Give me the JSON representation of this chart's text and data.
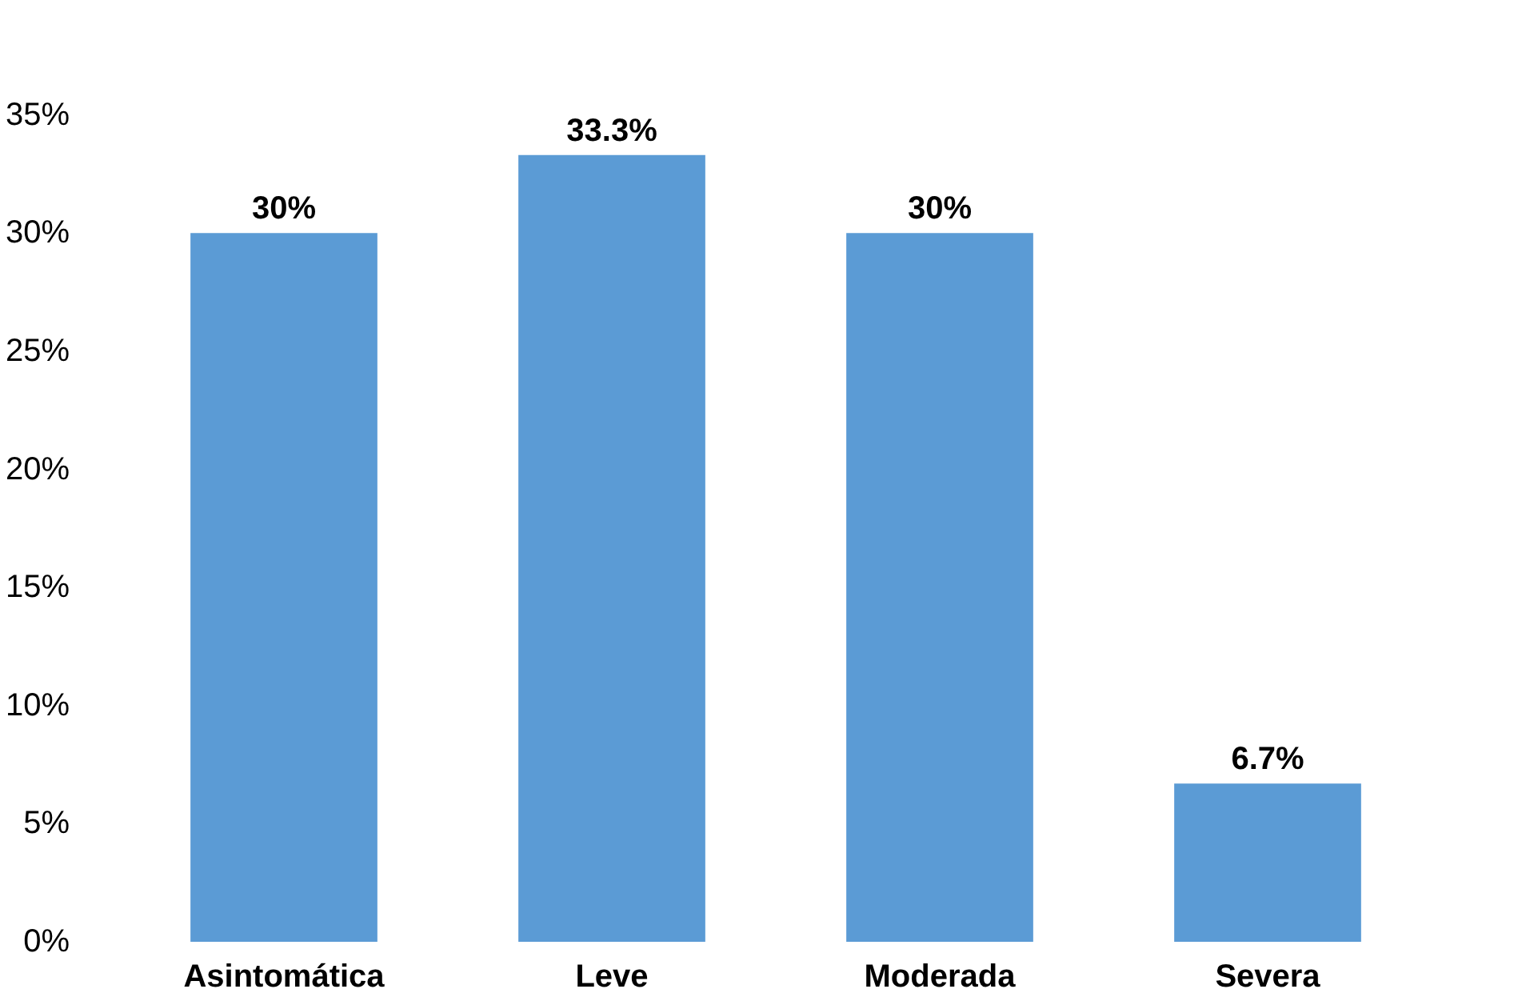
{
  "chart_data": {
    "type": "bar",
    "categories": [
      "Asintomática",
      "Leve",
      "Moderada",
      "Severa"
    ],
    "values": [
      30,
      33.3,
      30,
      6.7
    ],
    "color": "#5b9bd5",
    "value_labels": [
      "30%",
      "33.3%",
      "30%",
      "6.7%"
    ],
    "ylim": [
      0,
      35
    ],
    "yticks": [
      {
        "value": 0,
        "label": "0%"
      },
      {
        "value": 5,
        "label": "5%"
      },
      {
        "value": 10,
        "label": "10%"
      },
      {
        "value": 15,
        "label": "15%"
      },
      {
        "value": 20,
        "label": "20%"
      },
      {
        "value": 25,
        "label": "25%"
      },
      {
        "value": 30,
        "label": "30%"
      },
      {
        "value": 35,
        "label": "35%"
      }
    ],
    "grid": false
  }
}
